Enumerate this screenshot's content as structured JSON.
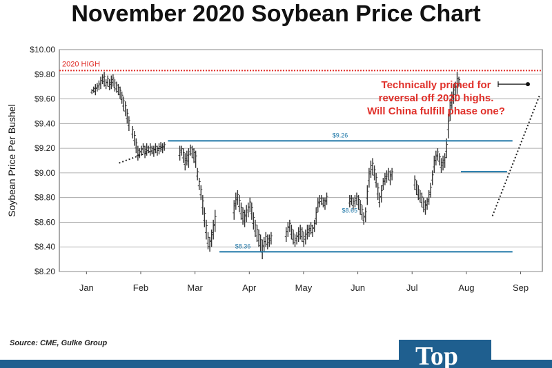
{
  "page": {
    "title": "November 2020 Soybean Price Chart"
  },
  "source": "Source: CME, Gulke Group",
  "logo": {
    "text": "Top"
  },
  "colors": {
    "high_line": "#e0302a",
    "level_line": "#1f77a8",
    "annotation": "#e0302a",
    "bars": "#333333",
    "brand": "#1f5f8f"
  },
  "chart_data": {
    "type": "ohlc",
    "title": "November 2020 Soybean Price Chart",
    "ylabel": "Soybean Price Per Bushel",
    "xlabel": "",
    "ylim": [
      8.2,
      10.0
    ],
    "y_ticks": [
      "$8.20",
      "$8.40",
      "$8.60",
      "$8.80",
      "$9.00",
      "$9.20",
      "$9.40",
      "$9.60",
      "$9.80",
      "$10.00"
    ],
    "x_ticks": [
      "Jan",
      "Feb",
      "Mar",
      "Apr",
      "May",
      "Jun",
      "Jul",
      "Aug",
      "Sep"
    ],
    "x_tick_positions": [
      0.9,
      1.9,
      2.9,
      3.9,
      4.9,
      5.9,
      6.9,
      7.9,
      8.9
    ],
    "grid": true,
    "high_line": {
      "label": "2020 HIGH",
      "value": 9.83
    },
    "levels": [
      {
        "label": "$9.26",
        "value": 9.26,
        "x_start": 2.4,
        "x_end": 8.75
      },
      {
        "label": "$8.65",
        "value": 8.65,
        "label_only": true,
        "x_label": 5.75
      },
      {
        "label": "$8.36",
        "value": 8.36,
        "x_start": 3.35,
        "x_end": 8.75
      },
      {
        "value": 9.01,
        "x_start": 7.8,
        "x_end": 8.65
      }
    ],
    "trendlines": [
      {
        "x": [
          1.5,
          2.3
        ],
        "y": [
          9.08,
          9.21
        ]
      },
      {
        "x": [
          8.38,
          9.25
        ],
        "y": [
          8.65,
          9.63
        ]
      }
    ],
    "annotation": {
      "lines": [
        "Technically primed for",
        "reversal off 2020 highs.",
        "Will China fulfill phase one?"
      ]
    },
    "series": [
      {
        "x": 1.0,
        "values": [
          [
            9.64,
            9.68
          ],
          [
            9.65,
            9.7
          ],
          [
            9.63,
            9.72
          ],
          [
            9.66,
            9.73
          ],
          [
            9.67,
            9.75
          ],
          [
            9.68,
            9.78
          ],
          [
            9.72,
            9.8
          ],
          [
            9.7,
            9.82
          ],
          [
            9.68,
            9.76
          ],
          [
            9.7,
            9.79
          ],
          [
            9.67,
            9.76
          ],
          [
            9.68,
            9.79
          ],
          [
            9.7,
            9.8
          ],
          [
            9.66,
            9.76
          ],
          [
            9.65,
            9.74
          ],
          [
            9.63,
            9.72
          ],
          [
            9.6,
            9.7
          ],
          [
            9.56,
            9.66
          ],
          [
            9.5,
            9.62
          ],
          [
            9.46,
            9.58
          ],
          [
            9.4,
            9.52
          ],
          [
            9.34,
            9.46
          ]
        ]
      },
      {
        "x": 1.75,
        "values": [
          [
            9.28,
            9.38
          ],
          [
            9.22,
            9.34
          ],
          [
            9.16,
            9.28
          ],
          [
            9.1,
            9.22
          ],
          [
            9.12,
            9.2
          ],
          [
            9.14,
            9.22
          ],
          [
            9.16,
            9.24
          ],
          [
            9.12,
            9.22
          ],
          [
            9.14,
            9.24
          ],
          [
            9.16,
            9.22
          ],
          [
            9.14,
            9.24
          ],
          [
            9.15,
            9.22
          ],
          [
            9.13,
            9.22
          ],
          [
            9.16,
            9.24
          ],
          [
            9.14,
            9.22
          ],
          [
            9.15,
            9.24
          ],
          [
            9.17,
            9.25
          ],
          [
            9.16,
            9.24
          ],
          [
            9.18,
            9.25
          ]
        ]
      },
      {
        "x": 2.62,
        "values": [
          [
            9.1,
            9.22
          ],
          [
            9.14,
            9.22
          ],
          [
            9.08,
            9.2
          ],
          [
            9.02,
            9.16
          ],
          [
            9.06,
            9.18
          ],
          [
            9.04,
            9.2
          ],
          [
            9.14,
            9.23
          ],
          [
            9.12,
            9.22
          ],
          [
            9.08,
            9.2
          ],
          [
            9.04,
            9.18
          ],
          [
            8.94,
            9.04
          ],
          [
            8.86,
            8.96
          ],
          [
            8.78,
            8.9
          ],
          [
            8.66,
            8.82
          ],
          [
            8.56,
            8.72
          ],
          [
            8.46,
            8.62
          ],
          [
            8.38,
            8.52
          ],
          [
            8.36,
            8.48
          ],
          [
            8.4,
            8.54
          ],
          [
            8.46,
            8.62
          ],
          [
            8.52,
            8.7
          ]
        ]
      },
      {
        "x": 3.62,
        "values": [
          [
            8.62,
            8.78
          ],
          [
            8.7,
            8.84
          ],
          [
            8.74,
            8.86
          ],
          [
            8.68,
            8.82
          ],
          [
            8.62,
            8.76
          ],
          [
            8.58,
            8.72
          ],
          [
            8.56,
            8.7
          ],
          [
            8.6,
            8.74
          ],
          [
            8.64,
            8.76
          ],
          [
            8.68,
            8.8
          ],
          [
            8.62,
            8.76
          ],
          [
            8.54,
            8.68
          ],
          [
            8.48,
            8.62
          ],
          [
            8.44,
            8.58
          ],
          [
            8.4,
            8.54
          ],
          [
            8.36,
            8.5
          ],
          [
            8.3,
            8.46
          ],
          [
            8.36,
            8.48
          ],
          [
            8.4,
            8.52
          ],
          [
            8.38,
            8.5
          ],
          [
            8.4,
            8.5
          ],
          [
            8.42,
            8.52
          ]
        ]
      },
      {
        "x": 4.58,
        "values": [
          [
            8.44,
            8.56
          ],
          [
            8.48,
            8.6
          ],
          [
            8.52,
            8.62
          ],
          [
            8.46,
            8.58
          ],
          [
            8.42,
            8.54
          ],
          [
            8.4,
            8.5
          ],
          [
            8.42,
            8.52
          ],
          [
            8.44,
            8.56
          ],
          [
            8.46,
            8.58
          ],
          [
            8.44,
            8.56
          ],
          [
            8.4,
            8.52
          ],
          [
            8.42,
            8.54
          ],
          [
            8.46,
            8.58
          ],
          [
            8.48,
            8.58
          ],
          [
            8.5,
            8.6
          ],
          [
            8.48,
            8.58
          ],
          [
            8.52,
            8.62
          ],
          [
            8.58,
            8.72
          ],
          [
            8.68,
            8.8
          ],
          [
            8.72,
            8.82
          ],
          [
            8.74,
            8.82
          ],
          [
            8.72,
            8.8
          ],
          [
            8.7,
            8.8
          ],
          [
            8.74,
            8.84
          ]
        ]
      },
      {
        "x": 5.75,
        "values": [
          [
            8.72,
            8.82
          ],
          [
            8.74,
            8.82
          ],
          [
            8.7,
            8.8
          ],
          [
            8.72,
            8.82
          ],
          [
            8.74,
            8.84
          ],
          [
            8.7,
            8.82
          ],
          [
            8.66,
            8.78
          ],
          [
            8.62,
            8.74
          ],
          [
            8.58,
            8.68
          ],
          [
            8.6,
            8.72
          ],
          [
            8.74,
            8.9
          ],
          [
            8.88,
            9.04
          ],
          [
            8.96,
            9.1
          ],
          [
            8.98,
            9.12
          ],
          [
            8.94,
            9.06
          ],
          [
            8.88,
            9.0
          ],
          [
            8.78,
            8.92
          ],
          [
            8.72,
            8.84
          ],
          [
            8.76,
            8.9
          ],
          [
            8.86,
            8.96
          ],
          [
            8.9,
            9.0
          ],
          [
            8.92,
            9.02
          ],
          [
            8.94,
            9.04
          ],
          [
            8.9,
            9.02
          ],
          [
            8.94,
            9.04
          ]
        ]
      },
      {
        "x": 6.95,
        "values": [
          [
            8.86,
            8.98
          ],
          [
            8.82,
            8.94
          ],
          [
            8.78,
            8.9
          ],
          [
            8.76,
            8.86
          ],
          [
            8.72,
            8.84
          ],
          [
            8.68,
            8.8
          ],
          [
            8.66,
            8.78
          ],
          [
            8.7,
            8.8
          ],
          [
            8.74,
            8.86
          ],
          [
            8.8,
            8.92
          ],
          [
            8.9,
            9.02
          ],
          [
            9.0,
            9.14
          ],
          [
            9.06,
            9.18
          ],
          [
            9.1,
            9.2
          ],
          [
            9.06,
            9.16
          ],
          [
            9.0,
            9.12
          ],
          [
            9.02,
            9.14
          ],
          [
            9.04,
            9.16
          ],
          [
            9.12,
            9.28
          ],
          [
            9.28,
            9.48
          ],
          [
            9.42,
            9.6
          ],
          [
            9.52,
            9.66
          ],
          [
            9.56,
            9.72
          ],
          [
            9.58,
            9.74
          ],
          [
            9.64,
            9.82
          ],
          [
            9.7,
            9.78
          ]
        ]
      }
    ]
  }
}
